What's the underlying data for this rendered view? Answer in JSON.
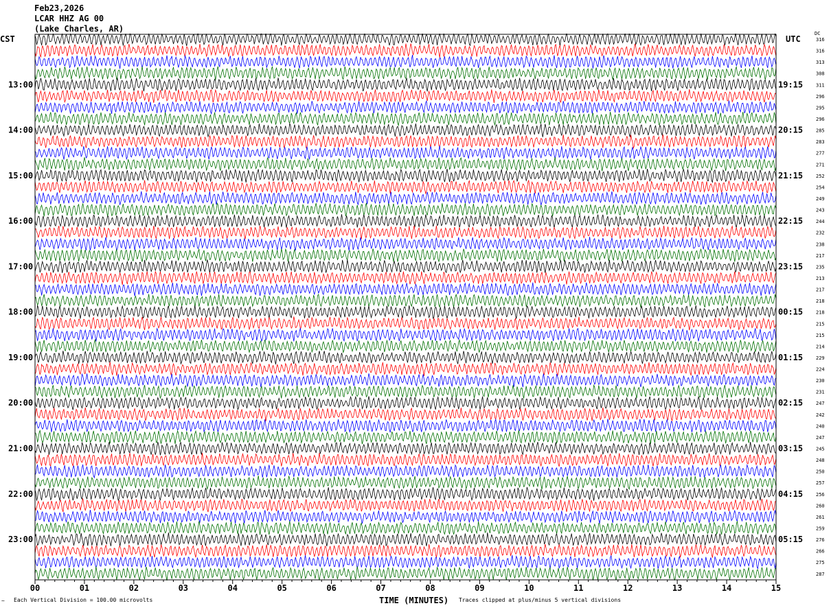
{
  "chart_data": {
    "type": "line",
    "title_lines": [
      "Feb23,2026",
      "LCAR HHZ AG 00",
      "(Lake Charles, AR)"
    ],
    "left_timezone": "CST",
    "right_timezone": "UTC",
    "dc_header": "DC",
    "left_hour_labels": [
      "13:00",
      "14:00",
      "15:00",
      "16:00",
      "17:00",
      "18:00",
      "19:00",
      "20:00",
      "21:00",
      "22:00",
      "23:00"
    ],
    "right_hour_labels": [
      "19:15",
      "20:15",
      "21:15",
      "22:15",
      "23:15",
      "00:15",
      "01:15",
      "02:15",
      "03:15",
      "04:15",
      "05:15"
    ],
    "dc_values": [
      316,
      316,
      313,
      308,
      311,
      296,
      295,
      296,
      285,
      283,
      277,
      271,
      252,
      254,
      249,
      243,
      244,
      232,
      238,
      217,
      235,
      213,
      217,
      218,
      218,
      215,
      215,
      214,
      229,
      224,
      230,
      231,
      247,
      242,
      240,
      247,
      245,
      248,
      250,
      257,
      256,
      260,
      261,
      259,
      276,
      266,
      275,
      287
    ],
    "trace_colors": [
      "#000000",
      "#ff0000",
      "#0000ff",
      "#007000"
    ],
    "x_ticks": [
      "00",
      "01",
      "02",
      "03",
      "04",
      "05",
      "06",
      "07",
      "08",
      "09",
      "10",
      "11",
      "12",
      "13",
      "14",
      "15"
    ],
    "xlabel": "TIME (MINUTES)",
    "xlim": [
      0,
      15
    ],
    "scale_note": "Each Vertical Division =  100.00 microvolts",
    "clip_note": "Traces clipped at plus/minus 5 vertical divisions"
  }
}
